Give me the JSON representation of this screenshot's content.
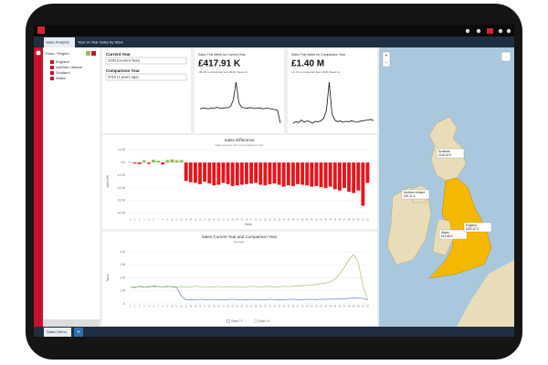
{
  "tabs": [
    "Sales Analysis",
    "Year on Year Sales by Store"
  ],
  "sidebar": {
    "title": "Store / Region",
    "items": [
      "England",
      "Northern Ireland",
      "Scotland",
      "Wales"
    ]
  },
  "filters": [
    {
      "label": "Current Year",
      "value": "2020 (Current Year)"
    },
    {
      "label": "Comparison Year",
      "value": "2019 (1 years ago)"
    }
  ],
  "kpis": [
    {
      "title": "Sales This Week for Current Year",
      "value": "£417.91 K",
      "note": "-48.4% vs Financial Year 2019, Week 41",
      "trend": [
        0.35,
        0.4,
        0.38,
        0.36,
        0.4,
        0.37,
        0.42,
        0.39,
        0.38,
        0.41,
        0.4,
        0.45,
        0.7,
        1.4,
        0.6,
        0.42,
        0.4,
        0.38,
        0.41,
        0.39,
        0.37,
        0.4,
        0.38,
        0.36,
        0.39,
        0.37,
        0.35,
        0.33,
        0.3,
        -0.2
      ]
    },
    {
      "title": "Sales This Week for Comparison Year",
      "value": "£1.40 M",
      "note": "+4.1% vs Financial Year 2018, Week 41",
      "trend": [
        0.9,
        0.95,
        0.92,
        1.0,
        0.93,
        0.97,
        0.95,
        0.9,
        0.96,
        0.94,
        0.98,
        1.05,
        1.3,
        2.2,
        1.2,
        1.0,
        0.95,
        0.97,
        0.93,
        0.96,
        0.94,
        0.98,
        0.95,
        0.93,
        0.96,
        0.97,
        0.99,
        1.0,
        1.02,
        0.98
      ]
    }
  ],
  "chart_data": [
    {
      "type": "bar",
      "title": "Sales Difference",
      "subtitle": "Sales Current Year vs Comparison Year",
      "y_label": "Sales Diff",
      "x_label": "Week",
      "categories": [
        1,
        2,
        3,
        4,
        5,
        6,
        7,
        8,
        9,
        10,
        11,
        12,
        13,
        14,
        15,
        16,
        17,
        18,
        19,
        20,
        21,
        22,
        23,
        24,
        25,
        26,
        27,
        28,
        29,
        30,
        31,
        32,
        33,
        34,
        35,
        36,
        37,
        38,
        39,
        40,
        41,
        42,
        43,
        44,
        45,
        46,
        47,
        48,
        49,
        50,
        51,
        52
      ],
      "values": [
        0.05,
        -0.08,
        -0.12,
        0.18,
        -0.1,
        0.22,
        0.15,
        -0.15,
        0.2,
        0.25,
        0.18,
        0.2,
        -1.45,
        -1.55,
        -1.6,
        -1.7,
        -1.5,
        -1.65,
        -1.8,
        -1.75,
        -1.6,
        -1.7,
        -1.85,
        -1.8,
        -1.75,
        -1.7,
        -1.65,
        -1.6,
        -1.75,
        -1.8,
        -1.7,
        -1.65,
        -1.75,
        -1.9,
        -1.8,
        -1.85,
        -1.7,
        -1.75,
        -1.8,
        -1.9,
        -1.85,
        -1.95,
        -2.0,
        -1.9,
        -2.1,
        -2.2,
        -2.0,
        -2.3,
        -2.4,
        -2.2,
        -3.4,
        -1.6
      ],
      "positive_color": "#9bbb59",
      "negative_color": "#e8141b",
      "ylim": [
        -4.3,
        1.3
      ],
      "yticks": [
        {
          "value": 1,
          "label": "1.0 M"
        },
        {
          "value": 0,
          "label": "0.0"
        },
        {
          "value": -1,
          "label": "-1.0 M"
        },
        {
          "value": -2,
          "label": "-2.0 M"
        },
        {
          "value": -3,
          "label": "-3.0 M"
        },
        {
          "value": -4,
          "label": "-4.0 M"
        }
      ],
      "grid": true
    },
    {
      "type": "line",
      "title": "Sales Current Year and Comparison Year",
      "subtitle": "By week",
      "y_label": "Sales",
      "categories": [
        1,
        2,
        3,
        4,
        5,
        6,
        7,
        8,
        9,
        10,
        11,
        12,
        13,
        14,
        15,
        16,
        17,
        18,
        19,
        20,
        21,
        22,
        23,
        24,
        25,
        26,
        27,
        28,
        29,
        30,
        31,
        32,
        33,
        34,
        35,
        36,
        37,
        38,
        39,
        40,
        41,
        42,
        43,
        44,
        45,
        46,
        47,
        48,
        49,
        50,
        51,
        52
      ],
      "series": [
        {
          "name": "Sales TY",
          "color": "#6f8fd0",
          "values": [
            1.3,
            1.25,
            1.35,
            1.3,
            1.28,
            1.4,
            1.32,
            1.3,
            1.36,
            1.3,
            1.25,
            0.6,
            0.3,
            0.32,
            0.3,
            0.35,
            0.33,
            0.3,
            0.34,
            0.32,
            0.3,
            0.33,
            0.35,
            0.31,
            0.3,
            0.32,
            0.34,
            0.33,
            0.3,
            0.31,
            0.35,
            0.33,
            0.32,
            0.3,
            0.34,
            0.36,
            0.33,
            0.32,
            0.35,
            0.34,
            0.33,
            0.36,
            0.35,
            0.37,
            0.36,
            0.38,
            0.4,
            0.42,
            0.45,
            0.44,
            0.42,
            0.3
          ]
        },
        {
          "name": "Sales LY",
          "color": "#a8c97f",
          "values": [
            1.28,
            1.32,
            1.3,
            1.27,
            1.35,
            1.3,
            1.33,
            1.29,
            1.31,
            1.34,
            1.3,
            1.32,
            1.28,
            1.3,
            1.35,
            1.33,
            1.3,
            1.29,
            1.31,
            1.34,
            1.3,
            1.32,
            1.33,
            1.3,
            1.28,
            1.31,
            1.35,
            1.32,
            1.3,
            1.33,
            1.34,
            1.31,
            1.3,
            1.35,
            1.33,
            1.36,
            1.38,
            1.4,
            1.42,
            1.45,
            1.5,
            1.55,
            1.6,
            1.7,
            1.9,
            2.3,
            2.8,
            3.4,
            3.8,
            3.2,
            1.4,
            0.3
          ]
        }
      ],
      "ylim": [
        0,
        4
      ],
      "yticks": [
        0,
        {
          "value": 1,
          "label": "1 M"
        },
        {
          "value": 2,
          "label": "2 M"
        },
        {
          "value": 3,
          "label": "3 M"
        },
        {
          "value": 4,
          "label": "4 M"
        }
      ],
      "grid": true
    }
  ],
  "map": {
    "zoom": [
      "+",
      "−"
    ],
    "labels": [
      {
        "name": "Scotland",
        "value": "£116.15 K"
      },
      {
        "name": "Northern Ireland",
        "value": "£30.21 K"
      },
      {
        "name": "Wales",
        "value": "£19.88 K"
      },
      {
        "name": "England",
        "value": "£251.67 K"
      }
    ]
  },
  "footer": {
    "tab": "Sales Demo",
    "add": "+"
  }
}
